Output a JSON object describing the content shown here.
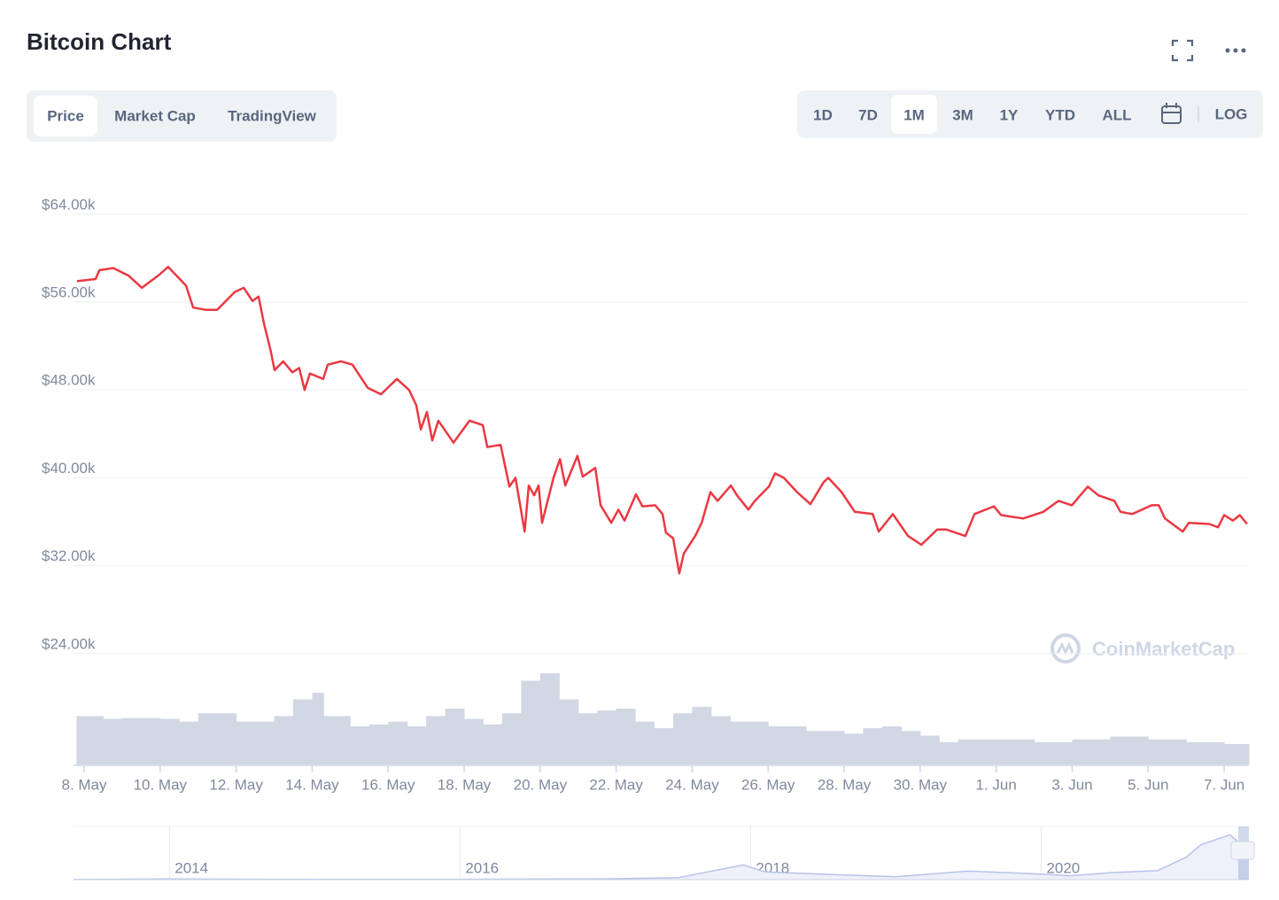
{
  "header": {
    "tabs": [
      "Price",
      "Market Cap",
      "TradingView"
    ],
    "selected_tab": 0,
    "ranges": [
      "1D",
      "7D",
      "1M",
      "3M",
      "1Y",
      "YTD",
      "ALL"
    ],
    "selected_range": 2,
    "scale_toggle": "LOG"
  },
  "chart_data": [
    {
      "type": "line",
      "title": "Bitcoin Chart",
      "watermark": "CoinMarketCap",
      "grid": true,
      "xlim": [
        7.72,
        38.65
      ],
      "xticks": [
        {
          "value": 8,
          "label": "8. May"
        },
        {
          "value": 10,
          "label": "10. May"
        },
        {
          "value": 12,
          "label": "12. May"
        },
        {
          "value": 14,
          "label": "14. May"
        },
        {
          "value": 16,
          "label": "16. May"
        },
        {
          "value": 18,
          "label": "18. May"
        },
        {
          "value": 20,
          "label": "20. May"
        },
        {
          "value": 22,
          "label": "22. May"
        },
        {
          "value": 24,
          "label": "24. May"
        },
        {
          "value": 26,
          "label": "26. May"
        },
        {
          "value": 28,
          "label": "28. May"
        },
        {
          "value": 30,
          "label": "30. May"
        },
        {
          "value": 32,
          "label": "1. Jun"
        },
        {
          "value": 34,
          "label": "3. Jun"
        },
        {
          "value": 36,
          "label": "5. Jun"
        },
        {
          "value": 38,
          "label": "7. Jun"
        }
      ],
      "ylim": [
        13900,
        66000
      ],
      "yticks": [
        {
          "value": 24000,
          "label": "$24.00k"
        },
        {
          "value": 32000,
          "label": "$32.00k"
        },
        {
          "value": 40000,
          "label": "$40.00k"
        },
        {
          "value": 48000,
          "label": "$48.00k"
        },
        {
          "value": 56000,
          "label": "$56.00k"
        },
        {
          "value": 64000,
          "label": "$64.00k"
        }
      ],
      "y2lim": [
        0,
        100
      ],
      "price": {
        "color": "#ea3943",
        "x": [
          7.81,
          8.3,
          8.4,
          8.77,
          9.17,
          9.52,
          9.98,
          10.21,
          10.68,
          10.87,
          11.19,
          11.5,
          11.96,
          12.2,
          12.43,
          12.59,
          12.73,
          12.9,
          13.01,
          13.24,
          13.48,
          13.66,
          13.8,
          13.94,
          14.29,
          14.41,
          14.76,
          15.06,
          15.46,
          15.81,
          16.23,
          16.55,
          16.74,
          16.86,
          17.02,
          17.16,
          17.32,
          17.72,
          18.14,
          18.49,
          18.61,
          18.96,
          19.19,
          19.35,
          19.59,
          19.7,
          19.84,
          19.96,
          20.05,
          20.35,
          20.52,
          20.66,
          20.98,
          21.12,
          21.45,
          21.59,
          21.87,
          22.06,
          22.22,
          22.52,
          22.69,
          23.03,
          23.22,
          23.31,
          23.5,
          23.66,
          23.78,
          24.08,
          24.25,
          24.48,
          24.67,
          25.02,
          25.18,
          25.48,
          25.65,
          26.02,
          26.18,
          26.41,
          26.76,
          27.11,
          27.46,
          27.58,
          27.93,
          28.28,
          28.75,
          28.91,
          29.28,
          29.68,
          30.03,
          30.45,
          30.68,
          31.19,
          31.43,
          31.94,
          32.13,
          32.71,
          33.24,
          33.64,
          33.99,
          34.41,
          34.69,
          35.11,
          35.27,
          35.58,
          36.09,
          36.28,
          36.44,
          36.91,
          37.07,
          37.6,
          37.84,
          38.0,
          38.23,
          38.41,
          38.6
        ],
        "values": [
          57900,
          58100,
          58900,
          59100,
          58400,
          57300,
          58500,
          59200,
          57500,
          55500,
          55300,
          55300,
          56900,
          57300,
          56100,
          56500,
          54100,
          51700,
          49800,
          50600,
          49600,
          50000,
          48000,
          49500,
          49000,
          50300,
          50600,
          50300,
          48200,
          47600,
          49000,
          48000,
          46600,
          44400,
          46000,
          43400,
          45200,
          43200,
          45200,
          44800,
          42800,
          43000,
          39200,
          40000,
          35100,
          39300,
          38400,
          39300,
          35900,
          40000,
          41700,
          39300,
          42000,
          40100,
          40900,
          37500,
          35900,
          37100,
          36100,
          38500,
          37400,
          37500,
          36700,
          35000,
          34500,
          31300,
          33100,
          34700,
          35900,
          38700,
          37900,
          39300,
          38400,
          37100,
          37900,
          39200,
          40400,
          40000,
          38700,
          37600,
          39600,
          40000,
          38700,
          36900,
          36700,
          35100,
          36700,
          34700,
          33900,
          35300,
          35300,
          34700,
          36700,
          37400,
          36600,
          36300,
          36900,
          37900,
          37500,
          39200,
          38400,
          37900,
          36900,
          36700,
          37500,
          37500,
          36300,
          35100,
          35900,
          35800,
          35500,
          36600,
          36100,
          36600,
          35800
        ]
      },
      "volume": {
        "color": "#d1d7e3",
        "axis": "y2",
        "x": [
          7.8,
          8.5,
          9,
          10,
          10.5,
          11,
          12,
          13,
          13.5,
          14,
          14.3,
          15,
          15.5,
          16,
          16.5,
          17,
          17.5,
          18,
          18.5,
          19,
          19.5,
          20,
          20.5,
          21,
          21.5,
          22,
          22.5,
          23,
          23.5,
          24,
          24.5,
          25,
          26,
          27,
          28,
          28.5,
          29,
          29.5,
          30,
          30.5,
          31,
          32,
          33,
          34,
          35,
          36,
          37,
          38
        ],
        "values": [
          52,
          49,
          50,
          49,
          46,
          55,
          46,
          52,
          70,
          77,
          52,
          41,
          43,
          46,
          41,
          52,
          60,
          49,
          43,
          55,
          90,
          98,
          70,
          55,
          58,
          60,
          46,
          39,
          55,
          62,
          52,
          46,
          41,
          36,
          33,
          39,
          41,
          36,
          31,
          24,
          27,
          27,
          24,
          27,
          30,
          27,
          24,
          22
        ]
      }
    },
    {
      "type": "area",
      "color": "#b9c2ea",
      "xlim": [
        2013.34,
        2021.43
      ],
      "xticks": [
        2014,
        2016,
        2018,
        2020
      ],
      "ylim": [
        0,
        64000
      ],
      "x": [
        2013.34,
        2014,
        2015,
        2016,
        2017,
        2017.5,
        2017.95,
        2018.1,
        2018.5,
        2019,
        2019.5,
        2020,
        2020.2,
        2020.5,
        2020.8,
        2021,
        2021.1,
        2021.3,
        2021.43
      ],
      "values": [
        100,
        800,
        300,
        400,
        1000,
        2500,
        19000,
        10000,
        7000,
        3800,
        11000,
        7200,
        5000,
        9200,
        11500,
        29000,
        45000,
        58000,
        36000
      ]
    }
  ]
}
